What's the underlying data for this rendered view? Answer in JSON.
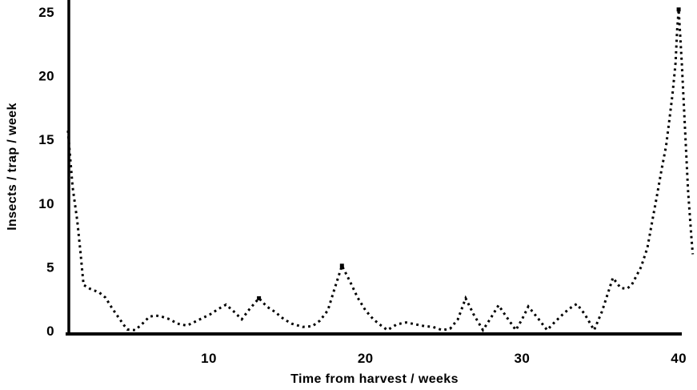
{
  "figure": {
    "background": "#ffffff",
    "ink_color": "#000000"
  },
  "chart_data": {
    "type": "line",
    "title": "",
    "xlabel": "Time from harvest / weeks",
    "ylabel": "Insects / trap / week",
    "x_ticks": [
      10,
      20,
      30,
      40
    ],
    "y_ticks": [
      0,
      5,
      10,
      15,
      20,
      25
    ],
    "xlim": [
      1,
      41.5
    ],
    "ylim": [
      0,
      26
    ],
    "grid": false,
    "legend": false,
    "line_style": "dotted",
    "line_color": "#000000",
    "series": [
      {
        "name": "insects-per-trap-per-week",
        "points": [
          [
            1.0,
            15.7
          ],
          [
            1.3,
            11.3
          ],
          [
            1.6,
            8.6
          ],
          [
            1.8,
            6.2
          ],
          [
            2.0,
            3.6
          ],
          [
            2.4,
            3.3
          ],
          [
            3.0,
            3.0
          ],
          [
            3.4,
            2.6
          ],
          [
            3.8,
            1.8
          ],
          [
            4.2,
            1.1
          ],
          [
            4.6,
            0.4
          ],
          [
            4.8,
            0.1
          ],
          [
            5.3,
            0.05
          ],
          [
            5.8,
            0.6
          ],
          [
            6.2,
            1.1
          ],
          [
            6.6,
            1.2
          ],
          [
            7.0,
            1.1
          ],
          [
            7.5,
            0.9
          ],
          [
            8.0,
            0.55
          ],
          [
            8.6,
            0.4
          ],
          [
            9.1,
            0.7
          ],
          [
            9.6,
            1.0
          ],
          [
            10.1,
            1.3
          ],
          [
            10.6,
            1.7
          ],
          [
            11.1,
            2.05
          ],
          [
            11.6,
            1.5
          ],
          [
            12.1,
            0.9
          ],
          [
            12.6,
            1.7
          ],
          [
            13.2,
            2.55
          ],
          [
            13.7,
            1.9
          ],
          [
            14.2,
            1.5
          ],
          [
            14.8,
            0.9
          ],
          [
            15.3,
            0.55
          ],
          [
            16.0,
            0.3
          ],
          [
            16.6,
            0.35
          ],
          [
            17.1,
            0.8
          ],
          [
            17.6,
            1.6
          ],
          [
            18.0,
            3.2
          ],
          [
            18.5,
            5.1
          ],
          [
            19.0,
            3.9
          ],
          [
            19.5,
            2.6
          ],
          [
            20.0,
            1.6
          ],
          [
            20.5,
            0.9
          ],
          [
            21.0,
            0.4
          ],
          [
            21.4,
            0.05
          ],
          [
            22.0,
            0.5
          ],
          [
            22.6,
            0.65
          ],
          [
            23.2,
            0.5
          ],
          [
            23.8,
            0.35
          ],
          [
            24.3,
            0.3
          ],
          [
            24.9,
            0.05
          ],
          [
            25.4,
            0.15
          ],
          [
            25.9,
            0.9
          ],
          [
            26.4,
            2.55
          ],
          [
            26.9,
            1.3
          ],
          [
            27.5,
            0.05
          ],
          [
            28.0,
            1.0
          ],
          [
            28.5,
            2.0
          ],
          [
            29.0,
            1.1
          ],
          [
            29.6,
            0.05
          ],
          [
            30.0,
            0.9
          ],
          [
            30.4,
            1.9
          ],
          [
            31.0,
            1.0
          ],
          [
            31.6,
            0.05
          ],
          [
            32.1,
            0.7
          ],
          [
            32.7,
            1.4
          ],
          [
            33.2,
            1.9
          ],
          [
            33.5,
            2.1
          ],
          [
            34.0,
            1.3
          ],
          [
            34.6,
            0.05
          ],
          [
            35.1,
            1.5
          ],
          [
            35.5,
            3.0
          ],
          [
            35.8,
            4.15
          ],
          [
            36.3,
            3.35
          ],
          [
            36.7,
            3.3
          ],
          [
            37.0,
            3.6
          ],
          [
            37.3,
            4.3
          ],
          [
            37.6,
            5.0
          ],
          [
            38.0,
            6.5
          ],
          [
            38.3,
            8.5
          ],
          [
            38.6,
            10.5
          ],
          [
            38.9,
            12.6
          ],
          [
            39.2,
            14.5
          ],
          [
            39.4,
            16.5
          ],
          [
            39.6,
            18.5
          ],
          [
            39.8,
            21.0
          ],
          [
            39.9,
            23.5
          ],
          [
            40.0,
            25.2
          ],
          [
            40.2,
            21.0
          ],
          [
            40.4,
            16.0
          ],
          [
            40.6,
            11.0
          ],
          [
            40.8,
            7.5
          ],
          [
            40.9,
            6.0
          ]
        ]
      }
    ],
    "marker_points": [
      [
        13.2,
        2.55
      ],
      [
        18.5,
        5.1
      ],
      [
        40.0,
        25.2
      ]
    ]
  }
}
